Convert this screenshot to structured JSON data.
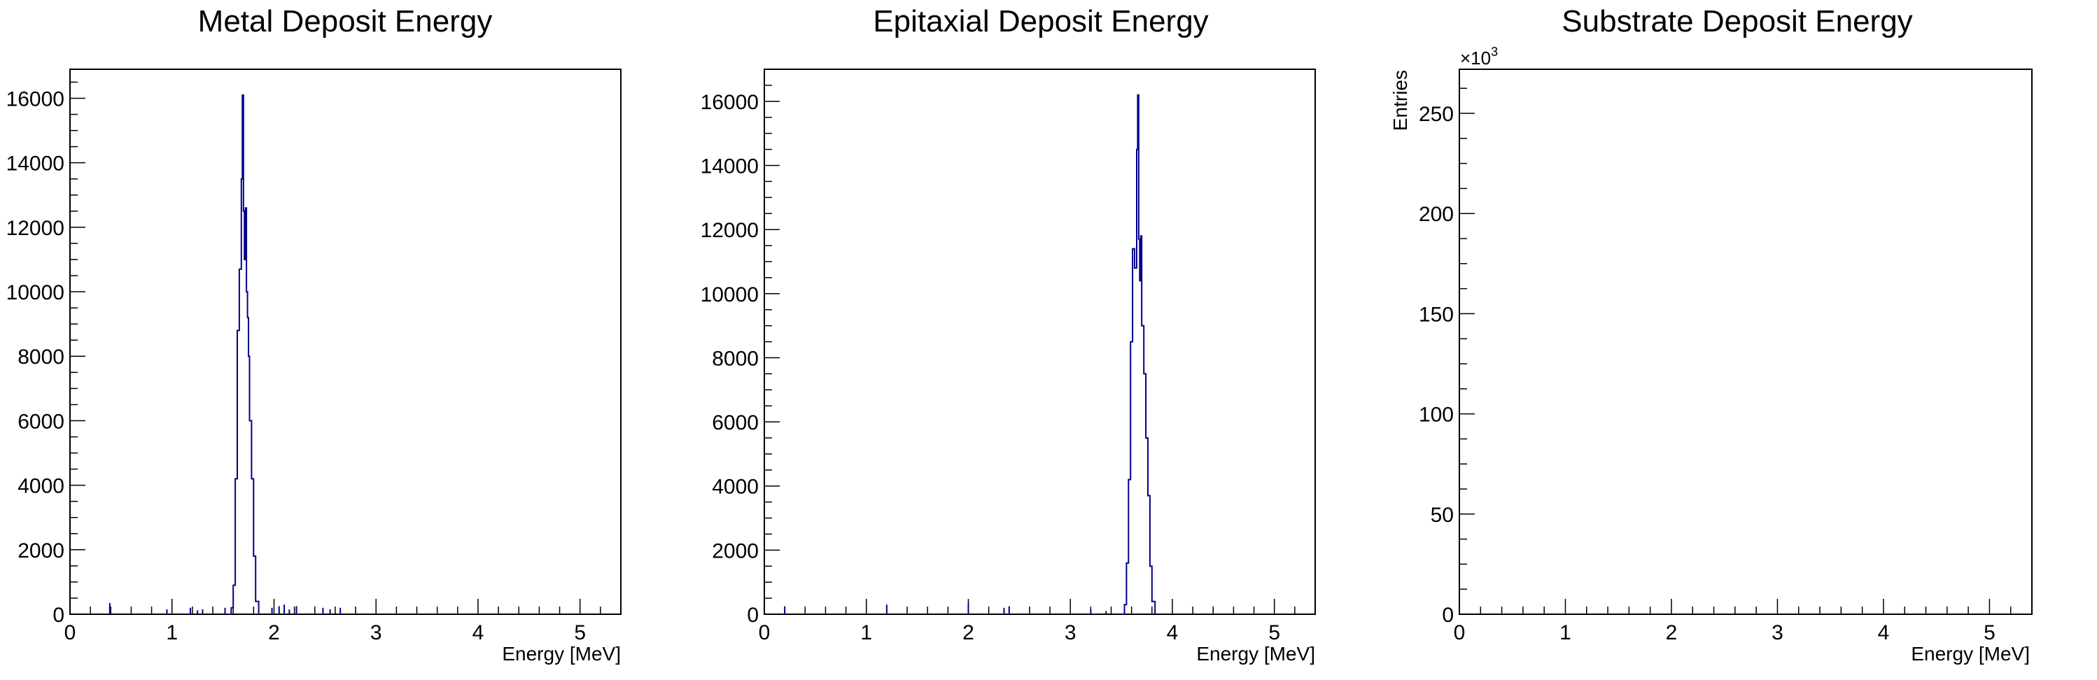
{
  "chart_data": [
    {
      "type": "histogram",
      "title": "Metal Deposit Energy",
      "xlabel": "Energy [MeV]",
      "ylabel": "",
      "xlim": [
        0,
        5.4
      ],
      "ylim": [
        0,
        16900
      ],
      "xticks": [
        0,
        1,
        2,
        3,
        4,
        5
      ],
      "yticks": [
        0,
        2000,
        4000,
        6000,
        8000,
        10000,
        12000,
        14000,
        16000
      ],
      "ytick_labels": [
        "0",
        "2000",
        "4000",
        "6000",
        "8000",
        "10000",
        "12000",
        "14000",
        "16000"
      ],
      "line_color": "#00008b",
      "peak": {
        "x": [
          1.55,
          1.58,
          1.6,
          1.62,
          1.64,
          1.66,
          1.68,
          1.69,
          1.7,
          1.71,
          1.72,
          1.73,
          1.74,
          1.75,
          1.76,
          1.78,
          1.8,
          1.82,
          1.85
        ],
        "y": [
          0,
          200,
          900,
          4200,
          8800,
          10700,
          13500,
          16100,
          12500,
          11000,
          12600,
          10000,
          9200,
          8000,
          6000,
          4200,
          1800,
          400,
          0
        ]
      },
      "spikes": {
        "x": [
          0.39,
          0.95,
          1.18,
          1.25,
          1.3,
          1.52,
          1.98,
          2.05,
          2.1,
          2.15,
          2.22,
          2.48,
          2.55,
          2.65
        ],
        "y": [
          350,
          150,
          200,
          120,
          150,
          200,
          200,
          250,
          300,
          150,
          250,
          200,
          150,
          200
        ]
      }
    },
    {
      "type": "histogram",
      "title": "Epitaxial Deposit Energy",
      "xlabel": "Energy [MeV]",
      "ylabel": "",
      "xlim": [
        0,
        5.4
      ],
      "ylim": [
        0,
        17000
      ],
      "xticks": [
        0,
        1,
        2,
        3,
        4,
        5
      ],
      "yticks": [
        0,
        2000,
        4000,
        6000,
        8000,
        10000,
        12000,
        14000,
        16000
      ],
      "ytick_labels": [
        "0",
        "2000",
        "4000",
        "6000",
        "8000",
        "10000",
        "12000",
        "14000",
        "16000"
      ],
      "line_color": "#00008b",
      "peak": {
        "x": [
          3.5,
          3.53,
          3.55,
          3.57,
          3.59,
          3.61,
          3.63,
          3.65,
          3.66,
          3.67,
          3.68,
          3.69,
          3.7,
          3.72,
          3.74,
          3.76,
          3.78,
          3.8,
          3.83
        ],
        "y": [
          0,
          300,
          1600,
          4200,
          8500,
          11400,
          10800,
          14500,
          16200,
          11700,
          10400,
          11800,
          9000,
          7500,
          5500,
          3700,
          1500,
          400,
          0
        ]
      },
      "spikes": {
        "x": [
          0.2,
          1.2,
          2.0,
          2.35,
          2.4,
          3.2,
          3.35
        ],
        "y": [
          250,
          300,
          350,
          200,
          250,
          150,
          100
        ]
      }
    },
    {
      "type": "histogram",
      "title": "Substrate Deposit Energy",
      "xlabel": "Energy [MeV]",
      "ylabel": "Entries",
      "y_multiplier": "×10",
      "y_multiplier_exp": "3",
      "xlim": [
        0,
        5.4
      ],
      "ylim": [
        0,
        272
      ],
      "xticks": [
        0,
        1,
        2,
        3,
        4,
        5
      ],
      "yticks": [
        0,
        50,
        100,
        150,
        200,
        250
      ],
      "ytick_labels": [
        "0",
        "50",
        "100",
        "150",
        "200",
        "250"
      ],
      "line_color": "#00008b",
      "peak": {
        "x": [],
        "y": []
      },
      "spikes": {
        "x": [],
        "y": []
      }
    }
  ]
}
